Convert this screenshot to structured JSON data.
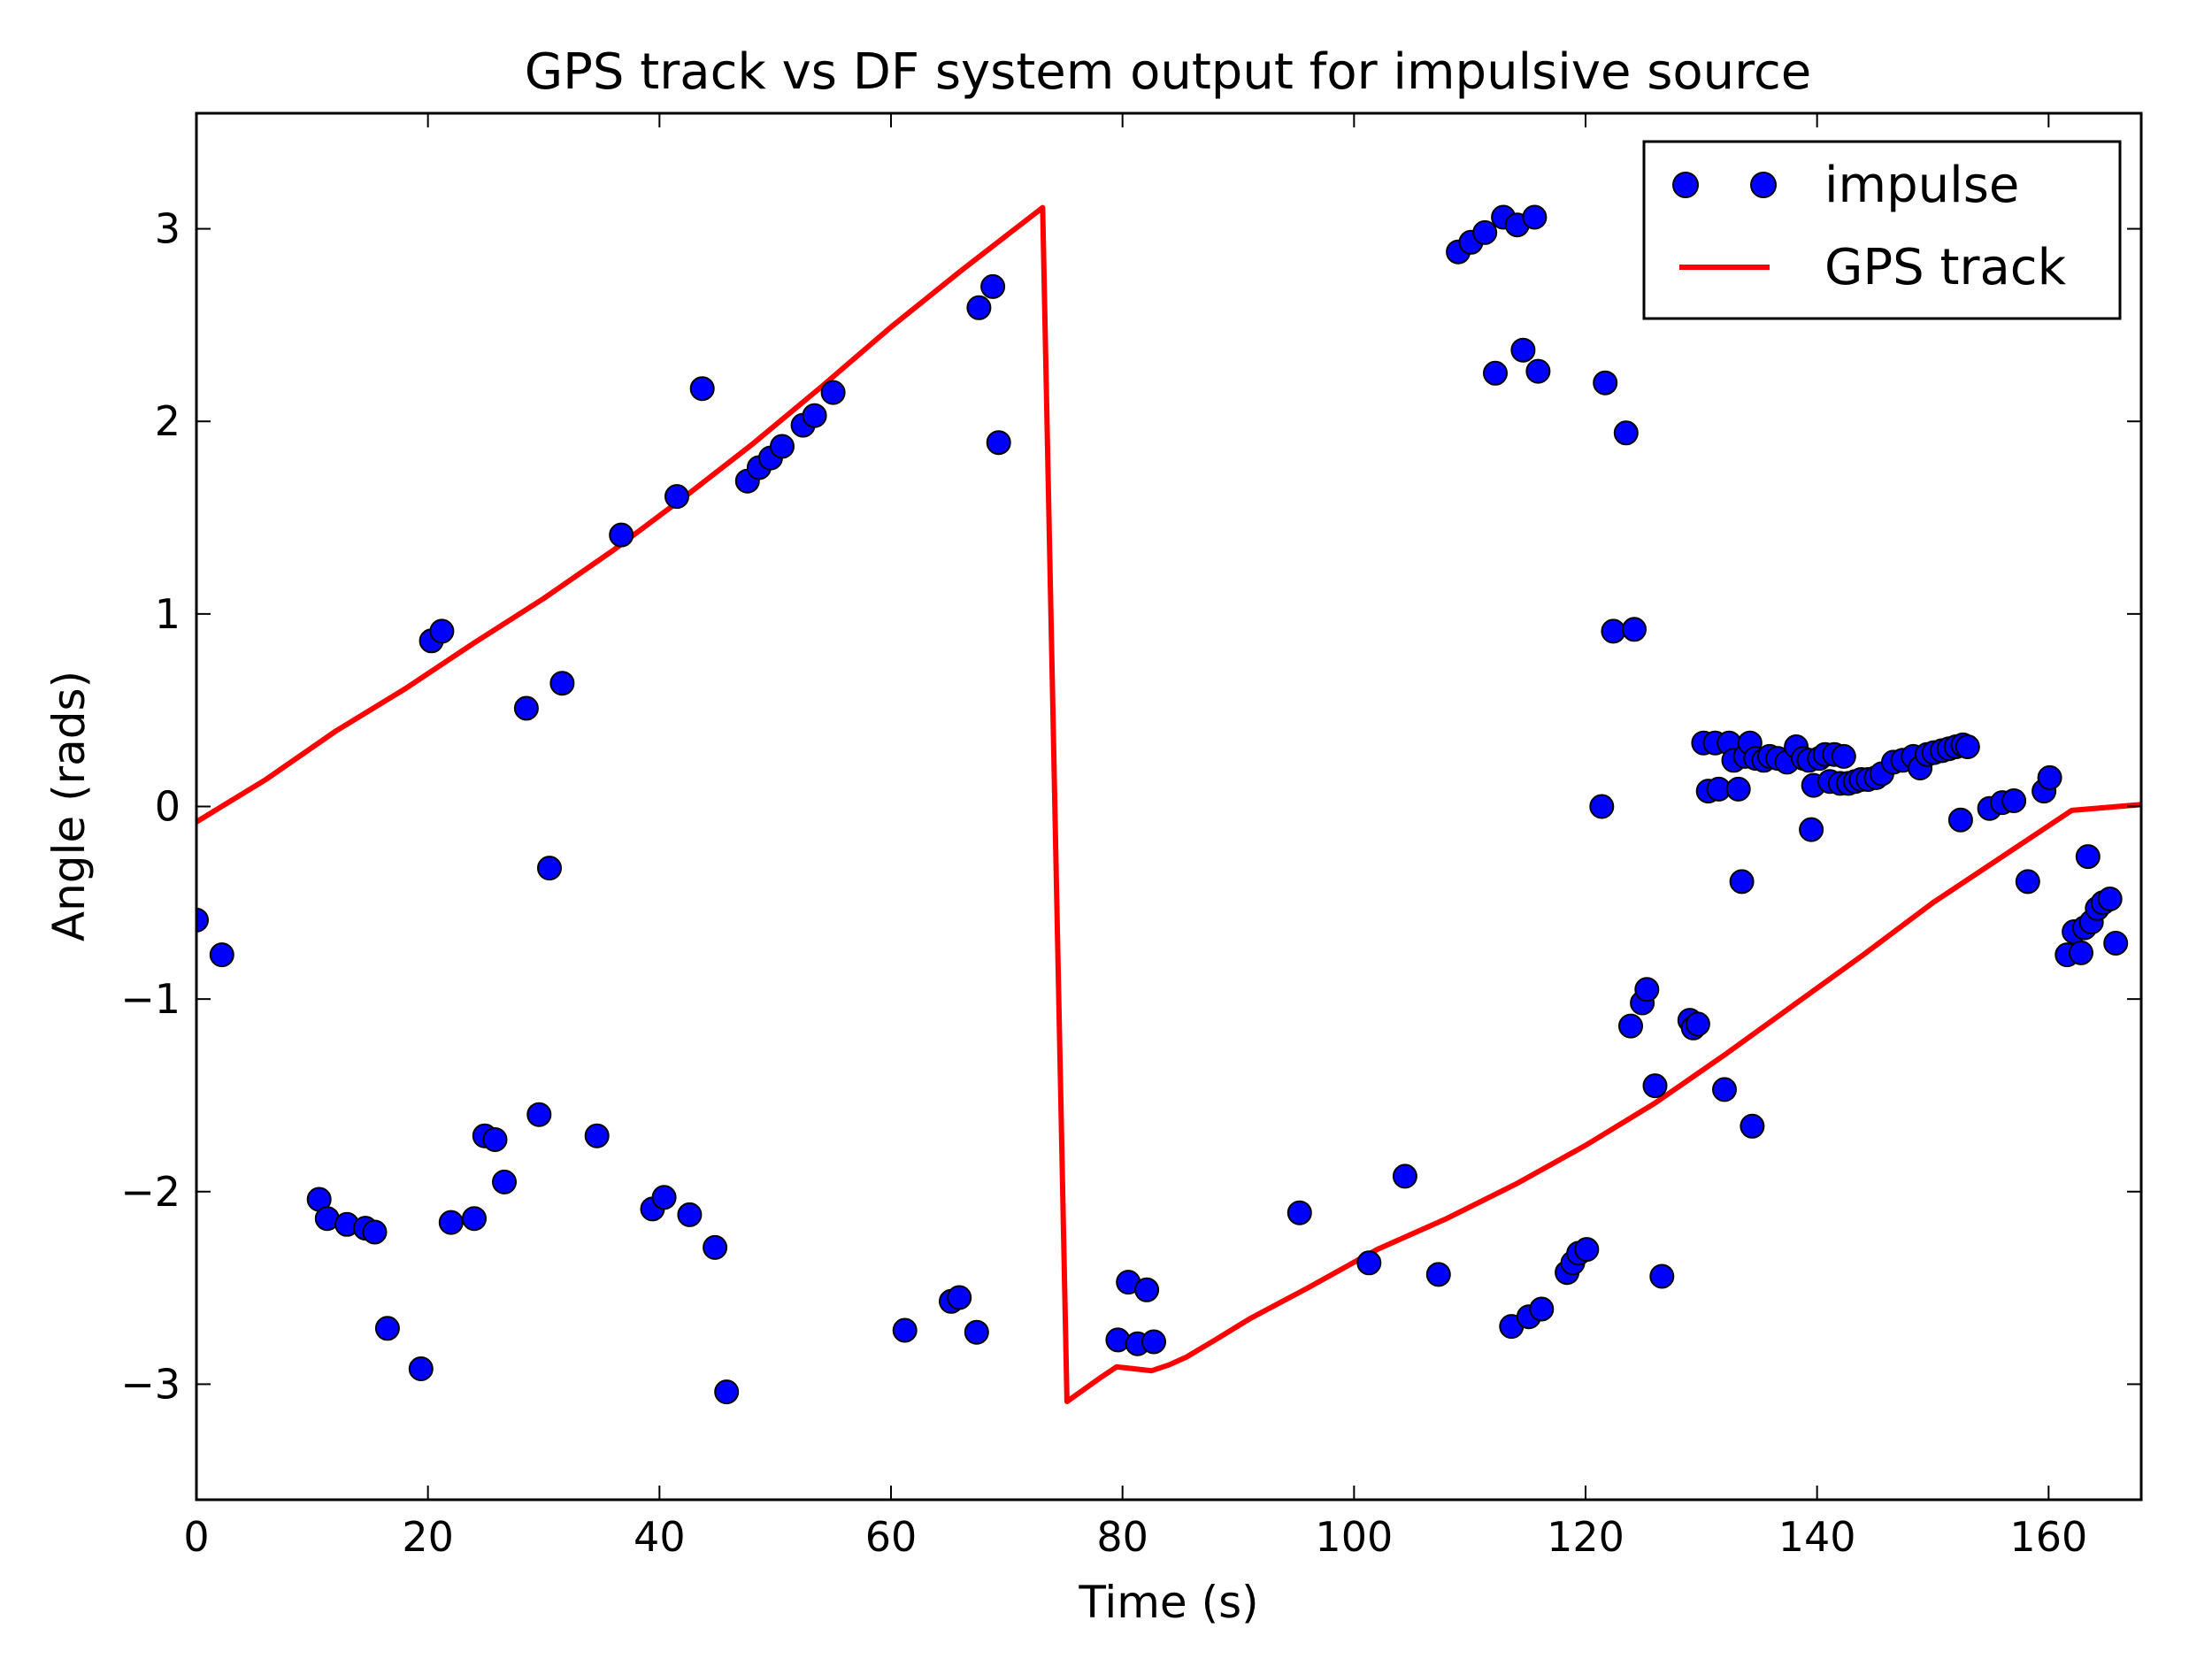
{
  "chart_data": {
    "type": "scatter",
    "title": "GPS track vs DF system output for impulsive source",
    "xlabel": "Time (s)",
    "ylabel": "Angle (rads)",
    "xlim": [
      0,
      168
    ],
    "ylim": [
      -3.6,
      3.6
    ],
    "xticks": [
      0,
      20,
      40,
      60,
      80,
      100,
      120,
      140,
      160
    ],
    "yticks": [
      -3,
      -2,
      -1,
      0,
      1,
      2,
      3
    ],
    "xtick_labels": [
      "0",
      "20",
      "40",
      "60",
      "80",
      "100",
      "120",
      "140",
      "160"
    ],
    "ytick_labels": [
      "−3",
      "−2",
      "−1",
      "0",
      "1",
      "2",
      "3"
    ],
    "grid": false,
    "legend_position": "top-right",
    "colors": {
      "impulse": "#0000ff",
      "gps": "#ff0000"
    },
    "series": [
      {
        "name": "impulse",
        "kind": "scatter",
        "points": [
          [
            0,
            -0.59
          ],
          [
            2.2,
            -0.77
          ],
          [
            10.6,
            -2.04
          ],
          [
            11.3,
            -2.14
          ],
          [
            13,
            -2.17
          ],
          [
            14.6,
            -2.19
          ],
          [
            15.4,
            -2.21
          ],
          [
            16.5,
            -2.71
          ],
          [
            19.4,
            -2.92
          ],
          [
            20.3,
            0.86
          ],
          [
            21.2,
            0.91
          ],
          [
            22,
            -2.16
          ],
          [
            24,
            -2.14
          ],
          [
            24.9,
            -1.71
          ],
          [
            25.8,
            -1.73
          ],
          [
            26.6,
            -1.95
          ],
          [
            28.5,
            0.51
          ],
          [
            29.6,
            -1.6
          ],
          [
            30.5,
            -0.32
          ],
          [
            31.6,
            0.64
          ],
          [
            34.6,
            -1.71
          ],
          [
            36.7,
            1.41
          ],
          [
            39.4,
            -2.09
          ],
          [
            40.4,
            -2.03
          ],
          [
            41.5,
            1.61
          ],
          [
            42.6,
            -2.12
          ],
          [
            43.7,
            2.17
          ],
          [
            44.8,
            -2.29
          ],
          [
            45.8,
            -3.04
          ],
          [
            47.6,
            1.69
          ],
          [
            48.6,
            1.76
          ],
          [
            49.6,
            1.81
          ],
          [
            50.6,
            1.87
          ],
          [
            52.4,
            1.98
          ],
          [
            53.4,
            2.03
          ],
          [
            55,
            2.15
          ],
          [
            61.2,
            -2.72
          ],
          [
            65.2,
            -2.57
          ],
          [
            65.9,
            -2.55
          ],
          [
            67.4,
            -2.73
          ],
          [
            67.6,
            2.59
          ],
          [
            68.8,
            2.7
          ],
          [
            69.3,
            1.89
          ],
          [
            79.6,
            -2.77
          ],
          [
            80.5,
            -2.47
          ],
          [
            81.3,
            -2.79
          ],
          [
            82.1,
            -2.51
          ],
          [
            82.7,
            -2.78
          ],
          [
            95.3,
            -2.11
          ],
          [
            101.3,
            -2.37
          ],
          [
            104.4,
            -1.92
          ],
          [
            107.3,
            -2.43
          ],
          [
            109,
            2.88
          ],
          [
            110.1,
            2.93
          ],
          [
            111.3,
            2.98
          ],
          [
            112.2,
            2.25
          ],
          [
            112.9,
            3.06
          ],
          [
            113.6,
            -2.7
          ],
          [
            114.1,
            3.02
          ],
          [
            114.6,
            2.37
          ],
          [
            115.1,
            -2.65
          ],
          [
            115.6,
            3.06
          ],
          [
            115.9,
            2.26
          ],
          [
            116.2,
            -2.61
          ],
          [
            118.4,
            -2.42
          ],
          [
            118.9,
            -2.37
          ],
          [
            119.4,
            -2.32
          ],
          [
            120.1,
            -2.3
          ],
          [
            121.4,
            0
          ],
          [
            121.7,
            2.2
          ],
          [
            122.4,
            0.91
          ],
          [
            123.5,
            1.94
          ],
          [
            123.9,
            -1.14
          ],
          [
            124.2,
            0.92
          ],
          [
            124.9,
            -1.02
          ],
          [
            125.3,
            -0.95
          ],
          [
            126,
            -1.45
          ],
          [
            126.6,
            -2.44
          ],
          [
            129,
            -1.11
          ],
          [
            129.3,
            -1.15
          ],
          [
            129.7,
            -1.13
          ],
          [
            130.2,
            0.33
          ],
          [
            130.6,
            0.08
          ],
          [
            131.2,
            0.33
          ],
          [
            131.5,
            0.09
          ],
          [
            132,
            -1.47
          ],
          [
            132.4,
            0.33
          ],
          [
            132.8,
            0.24
          ],
          [
            133.2,
            0.09
          ],
          [
            133.5,
            -0.39
          ],
          [
            133.8,
            0.26
          ],
          [
            134.2,
            0.33
          ],
          [
            134.4,
            -1.66
          ],
          [
            134.7,
            0.25
          ],
          [
            135.4,
            0.24
          ],
          [
            135.9,
            0.26
          ],
          [
            136.6,
            0.25
          ],
          [
            137.4,
            0.23
          ],
          [
            138.2,
            0.31
          ],
          [
            138.8,
            0.25
          ],
          [
            139.3,
            0.24
          ],
          [
            139.5,
            -0.12
          ],
          [
            139.7,
            0.11
          ],
          [
            140.2,
            0.25
          ],
          [
            140.7,
            0.27
          ],
          [
            141.1,
            0.13
          ],
          [
            141.5,
            0.27
          ],
          [
            142,
            0.12
          ],
          [
            142.3,
            0.26
          ],
          [
            142.7,
            0.12
          ],
          [
            143.3,
            0.13
          ],
          [
            143.8,
            0.14
          ],
          [
            144.4,
            0.14
          ],
          [
            145.1,
            0.15
          ],
          [
            145.6,
            0.17
          ],
          [
            146.6,
            0.23
          ],
          [
            147.4,
            0.24
          ],
          [
            148.3,
            0.26
          ],
          [
            148.9,
            0.2
          ],
          [
            149.5,
            0.27
          ],
          [
            150.1,
            0.28
          ],
          [
            150.8,
            0.29
          ],
          [
            151.4,
            0.3
          ],
          [
            152,
            0.31
          ],
          [
            152.4,
            -0.07
          ],
          [
            152.6,
            0.32
          ],
          [
            153,
            0.31
          ],
          [
            154.9,
            -0.01
          ],
          [
            156,
            0.02
          ],
          [
            157,
            0.03
          ],
          [
            158.2,
            -0.39
          ],
          [
            159.6,
            0.08
          ],
          [
            160.1,
            0.15
          ],
          [
            161.6,
            -0.77
          ],
          [
            162.2,
            -0.65
          ],
          [
            162.8,
            -0.76
          ],
          [
            163.1,
            -0.63
          ],
          [
            163.4,
            -0.26
          ],
          [
            163.7,
            -0.6
          ],
          [
            164.2,
            -0.53
          ],
          [
            164.7,
            -0.5
          ],
          [
            165.3,
            -0.48
          ],
          [
            165.8,
            -0.71
          ]
        ]
      },
      {
        "name": "GPS track",
        "kind": "line",
        "points": [
          [
            0,
            -0.08
          ],
          [
            6,
            0.14
          ],
          [
            12,
            0.39
          ],
          [
            18,
            0.61
          ],
          [
            24,
            0.85
          ],
          [
            30,
            1.08
          ],
          [
            36,
            1.33
          ],
          [
            42,
            1.6
          ],
          [
            48,
            1.88
          ],
          [
            54,
            2.18
          ],
          [
            60,
            2.49
          ],
          [
            66,
            2.78
          ],
          [
            73.1,
            3.11
          ],
          [
            75.2,
            -3.09
          ],
          [
            78,
            -2.97
          ],
          [
            79.5,
            -2.91
          ],
          [
            81,
            -2.92
          ],
          [
            82.5,
            -2.93
          ],
          [
            84,
            -2.9
          ],
          [
            85.5,
            -2.86
          ],
          [
            88,
            -2.77
          ],
          [
            91,
            -2.66
          ],
          [
            96,
            -2.5
          ],
          [
            102,
            -2.3
          ],
          [
            108,
            -2.14
          ],
          [
            114,
            -1.96
          ],
          [
            120,
            -1.76
          ],
          [
            126,
            -1.54
          ],
          [
            132,
            -1.29
          ],
          [
            138,
            -1.03
          ],
          [
            144,
            -0.77
          ],
          [
            150,
            -0.5
          ],
          [
            156,
            -0.26
          ],
          [
            162,
            -0.02
          ],
          [
            168,
            0.01
          ]
        ]
      }
    ]
  }
}
